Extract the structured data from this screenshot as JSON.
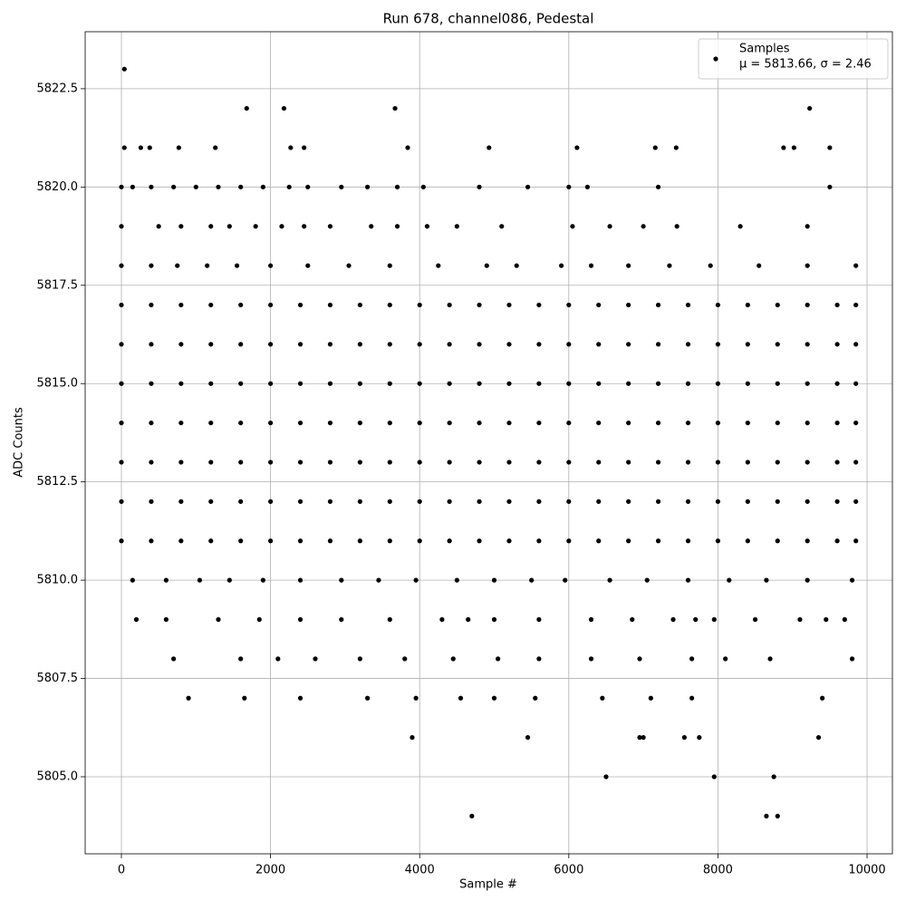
{
  "chart_data": {
    "type": "scatter",
    "title": "Run 678, channel086, Pedestal",
    "x_label": "Sample #",
    "y_label": "ADC Counts",
    "legend_note": "μ = 5813.66, σ = 2.46",
    "legend_position": "upper right",
    "grid": true,
    "xlim": [
      -486,
      10340
    ],
    "ylim": [
      5803.04,
      5823.95
    ],
    "xticks": [
      0,
      2000,
      4000,
      6000,
      8000,
      10000
    ],
    "yticks": [
      {
        "value": 5805,
        "label": "5805.0"
      },
      {
        "value": 5807.5,
        "label": "5807.5"
      },
      {
        "value": 5810,
        "label": "5810.0"
      },
      {
        "value": 5812.5,
        "label": "5812.5"
      },
      {
        "value": 5815,
        "label": "5815.0"
      },
      {
        "value": 5817.5,
        "label": "5817.5"
      },
      {
        "value": 5820,
        "label": "5820.0"
      },
      {
        "value": 5822.5,
        "label": "5822.5"
      }
    ],
    "series": [
      {
        "name": "Samples",
        "color": "#000000",
        "x": [
          40,
          1680,
          2180,
          3670,
          9230,
          40,
          260,
          380,
          770,
          1260,
          2270,
          2450,
          3840,
          4930,
          6110,
          7160,
          7440,
          8880,
          9020,
          9500,
          0,
          150,
          400,
          700,
          1000,
          1300,
          1600,
          1900,
          2250,
          2500,
          2950,
          3300,
          3700,
          4050,
          4800,
          5450,
          6000,
          6250,
          7200,
          9500,
          0,
          500,
          800,
          1200,
          1450,
          1800,
          2150,
          2450,
          2800,
          3350,
          3700,
          4100,
          4500,
          5100,
          6050,
          6550,
          7000,
          7450,
          8300,
          9200,
          0,
          400,
          750,
          1150,
          1550,
          2000,
          2500,
          3050,
          3600,
          4250,
          4900,
          5300,
          5900,
          6300,
          6800,
          7350,
          7900,
          8550,
          9200,
          9850,
          0,
          400,
          800,
          1200,
          1600,
          2000,
          2400,
          2800,
          3200,
          3600,
          4000,
          4400,
          4800,
          5200,
          5600,
          6000,
          6400,
          6800,
          7200,
          7600,
          8000,
          8400,
          8800,
          9200,
          9600,
          9850,
          0,
          400,
          800,
          1200,
          1600,
          2000,
          2400,
          2800,
          3200,
          3600,
          4000,
          4400,
          4800,
          5200,
          5600,
          6000,
          6400,
          6800,
          7200,
          7600,
          8000,
          8400,
          8800,
          9200,
          9600,
          9850,
          0,
          400,
          800,
          1200,
          1600,
          2000,
          2400,
          2800,
          3200,
          3600,
          4000,
          4400,
          4800,
          5200,
          5600,
          6000,
          6400,
          6800,
          7200,
          7600,
          8000,
          8400,
          8800,
          9200,
          9600,
          9850,
          0,
          400,
          800,
          1200,
          1600,
          2000,
          2400,
          2800,
          3200,
          3600,
          4000,
          4400,
          4800,
          5200,
          5600,
          6000,
          6400,
          6800,
          7200,
          7600,
          8000,
          8400,
          8800,
          9200,
          9600,
          9850,
          0,
          400,
          800,
          1200,
          1600,
          2000,
          2400,
          2800,
          3200,
          3600,
          4000,
          4400,
          4800,
          5200,
          5600,
          6000,
          6400,
          6800,
          7200,
          7600,
          8000,
          8400,
          8800,
          9200,
          9600,
          9850,
          0,
          400,
          800,
          1200,
          1600,
          2000,
          2400,
          2800,
          3200,
          3600,
          4000,
          4400,
          4800,
          5200,
          5600,
          6000,
          6400,
          6800,
          7200,
          7600,
          8000,
          8400,
          8800,
          9200,
          9600,
          9850,
          0,
          400,
          800,
          1200,
          1600,
          2000,
          2400,
          2800,
          3200,
          3600,
          4000,
          4400,
          4800,
          5200,
          5600,
          6000,
          6400,
          6800,
          7200,
          7600,
          8000,
          8400,
          8800,
          9200,
          9600,
          9850,
          150,
          600,
          1050,
          1450,
          1900,
          2400,
          2950,
          3450,
          3950,
          4500,
          5000,
          5500,
          5950,
          6550,
          7050,
          7600,
          8150,
          8650,
          9200,
          9800,
          200,
          600,
          1300,
          1850,
          2400,
          2950,
          3600,
          4300,
          4650,
          5000,
          5600,
          6300,
          6850,
          7400,
          7700,
          7950,
          8500,
          9100,
          9450,
          9700,
          700,
          1600,
          2100,
          2600,
          3200,
          3800,
          4450,
          5050,
          5600,
          6300,
          6950,
          7650,
          8100,
          8700,
          9800,
          900,
          1650,
          2400,
          3300,
          3950,
          4550,
          5000,
          5550,
          6450,
          7100,
          7650,
          9400,
          3900,
          5450,
          6950,
          7000,
          7550,
          7750,
          9350,
          6500,
          7950,
          8750,
          4700,
          8650,
          8800
        ],
        "y": [
          5823,
          5822,
          5822,
          5822,
          5822,
          5821,
          5821,
          5821,
          5821,
          5821,
          5821,
          5821,
          5821,
          5821,
          5821,
          5821,
          5821,
          5821,
          5821,
          5821,
          5820,
          5820,
          5820,
          5820,
          5820,
          5820,
          5820,
          5820,
          5820,
          5820,
          5820,
          5820,
          5820,
          5820,
          5820,
          5820,
          5820,
          5820,
          5820,
          5820,
          5819,
          5819,
          5819,
          5819,
          5819,
          5819,
          5819,
          5819,
          5819,
          5819,
          5819,
          5819,
          5819,
          5819,
          5819,
          5819,
          5819,
          5819,
          5819,
          5819,
          5818,
          5818,
          5818,
          5818,
          5818,
          5818,
          5818,
          5818,
          5818,
          5818,
          5818,
          5818,
          5818,
          5818,
          5818,
          5818,
          5818,
          5818,
          5818,
          5818,
          5817,
          5817,
          5817,
          5817,
          5817,
          5817,
          5817,
          5817,
          5817,
          5817,
          5817,
          5817,
          5817,
          5817,
          5817,
          5817,
          5817,
          5817,
          5817,
          5817,
          5817,
          5817,
          5817,
          5817,
          5817,
          5817,
          5816,
          5816,
          5816,
          5816,
          5816,
          5816,
          5816,
          5816,
          5816,
          5816,
          5816,
          5816,
          5816,
          5816,
          5816,
          5816,
          5816,
          5816,
          5816,
          5816,
          5816,
          5816,
          5816,
          5816,
          5816,
          5816,
          5815,
          5815,
          5815,
          5815,
          5815,
          5815,
          5815,
          5815,
          5815,
          5815,
          5815,
          5815,
          5815,
          5815,
          5815,
          5815,
          5815,
          5815,
          5815,
          5815,
          5815,
          5815,
          5815,
          5815,
          5815,
          5815,
          5814,
          5814,
          5814,
          5814,
          5814,
          5814,
          5814,
          5814,
          5814,
          5814,
          5814,
          5814,
          5814,
          5814,
          5814,
          5814,
          5814,
          5814,
          5814,
          5814,
          5814,
          5814,
          5814,
          5814,
          5814,
          5814,
          5813,
          5813,
          5813,
          5813,
          5813,
          5813,
          5813,
          5813,
          5813,
          5813,
          5813,
          5813,
          5813,
          5813,
          5813,
          5813,
          5813,
          5813,
          5813,
          5813,
          5813,
          5813,
          5813,
          5813,
          5813,
          5813,
          5812,
          5812,
          5812,
          5812,
          5812,
          5812,
          5812,
          5812,
          5812,
          5812,
          5812,
          5812,
          5812,
          5812,
          5812,
          5812,
          5812,
          5812,
          5812,
          5812,
          5812,
          5812,
          5812,
          5812,
          5812,
          5812,
          5811,
          5811,
          5811,
          5811,
          5811,
          5811,
          5811,
          5811,
          5811,
          5811,
          5811,
          5811,
          5811,
          5811,
          5811,
          5811,
          5811,
          5811,
          5811,
          5811,
          5811,
          5811,
          5811,
          5811,
          5811,
          5811,
          5810,
          5810,
          5810,
          5810,
          5810,
          5810,
          5810,
          5810,
          5810,
          5810,
          5810,
          5810,
          5810,
          5810,
          5810,
          5810,
          5810,
          5810,
          5810,
          5810,
          5809,
          5809,
          5809,
          5809,
          5809,
          5809,
          5809,
          5809,
          5809,
          5809,
          5809,
          5809,
          5809,
          5809,
          5809,
          5809,
          5809,
          5809,
          5809,
          5809,
          5808,
          5808,
          5808,
          5808,
          5808,
          5808,
          5808,
          5808,
          5808,
          5808,
          5808,
          5808,
          5808,
          5808,
          5808,
          5807,
          5807,
          5807,
          5807,
          5807,
          5807,
          5807,
          5807,
          5807,
          5807,
          5807,
          5807,
          5806,
          5806,
          5806,
          5806,
          5806,
          5806,
          5806,
          5805,
          5805,
          5805,
          5804,
          5804,
          5804
        ]
      }
    ]
  }
}
